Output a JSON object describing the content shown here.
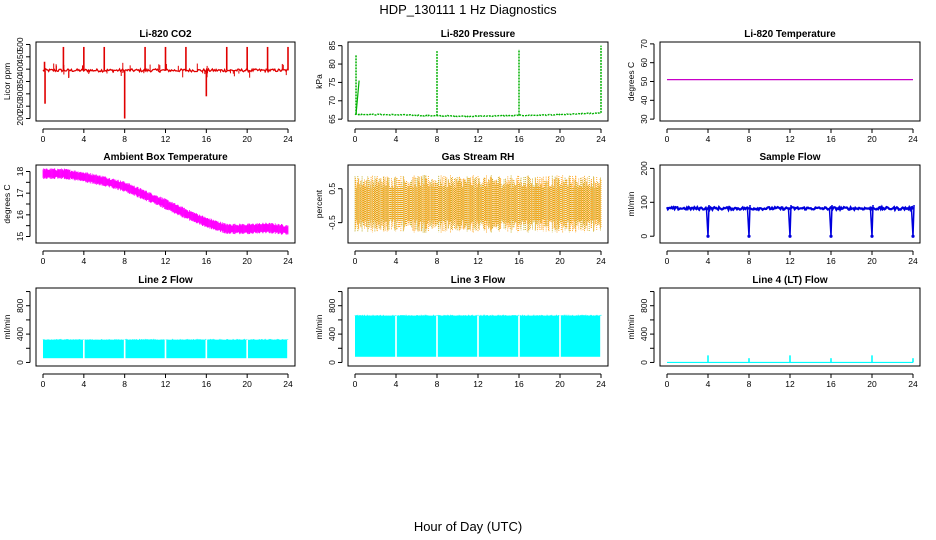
{
  "figure": {
    "title": "HDP_130111  1 Hz Diagnostics",
    "xlabel": "Hour of Day (UTC)"
  },
  "chart_data": [
    {
      "type": "line",
      "title": "Li-820 CO2",
      "ylabel": "Licor ppm",
      "color": "#e00000",
      "xlim": [
        0,
        24
      ],
      "xticks": [
        0,
        4,
        8,
        12,
        16,
        20,
        24
      ],
      "ylim": [
        190,
        510
      ],
      "yticks": [
        200,
        250,
        300,
        350,
        400,
        450,
        500
      ],
      "baseline": 395,
      "noise": 6,
      "spikes": [
        {
          "x": 0.15,
          "y": 430,
          "dir": "up"
        },
        {
          "x": 0.2,
          "y": 260,
          "dir": "down"
        },
        {
          "x": 2,
          "y": 490,
          "dir": "up"
        },
        {
          "x": 4,
          "y": 490,
          "dir": "up"
        },
        {
          "x": 6,
          "y": 490,
          "dir": "up"
        },
        {
          "x": 8,
          "y": 200,
          "dir": "down"
        },
        {
          "x": 10,
          "y": 490,
          "dir": "up"
        },
        {
          "x": 12,
          "y": 490,
          "dir": "up"
        },
        {
          "x": 14,
          "y": 490,
          "dir": "up"
        },
        {
          "x": 16,
          "y": 290,
          "dir": "down"
        },
        {
          "x": 18,
          "y": 490,
          "dir": "up"
        },
        {
          "x": 20,
          "y": 490,
          "dir": "up"
        },
        {
          "x": 22,
          "y": 490,
          "dir": "up"
        },
        {
          "x": 24,
          "y": 490,
          "dir": "up"
        }
      ]
    },
    {
      "type": "line",
      "title": "Li-820 Pressure",
      "ylabel": "kPa",
      "color": "#00b000",
      "xlim": [
        0,
        24
      ],
      "xticks": [
        0,
        4,
        8,
        12,
        16,
        20,
        24
      ],
      "ylim": [
        64.5,
        86
      ],
      "yticks": [
        65,
        70,
        75,
        80,
        85
      ],
      "levels": [
        {
          "x": 0,
          "y": 66.3
        },
        {
          "x": 4,
          "y": 66.2
        },
        {
          "x": 8,
          "y": 65.9
        },
        {
          "x": 12,
          "y": 65.8
        },
        {
          "x": 16,
          "y": 66.0
        },
        {
          "x": 20,
          "y": 66.2
        },
        {
          "x": 24,
          "y": 66.7
        }
      ],
      "spikes": [
        {
          "x": 0.1,
          "y": 82.5
        },
        {
          "x": 8,
          "y": 83.5
        },
        {
          "x": 16,
          "y": 84
        },
        {
          "x": 24,
          "y": 85
        }
      ]
    },
    {
      "type": "line",
      "title": "Li-820 Temperature",
      "ylabel": "degrees C",
      "color": "#c800c8",
      "xlim": [
        0,
        24
      ],
      "xticks": [
        0,
        4,
        8,
        12,
        16,
        20,
        24
      ],
      "ylim": [
        29,
        71
      ],
      "yticks": [
        30,
        40,
        50,
        60,
        70
      ],
      "constant": 51
    },
    {
      "type": "line",
      "title": "Ambient Box Temperature",
      "ylabel": "degrees C",
      "color": "#ff00ff",
      "xlim": [
        0,
        24
      ],
      "xticks": [
        0,
        4,
        8,
        12,
        16,
        20,
        24
      ],
      "ylim": [
        14.7,
        18.3
      ],
      "yticks": [
        15,
        15.5,
        16,
        16.5,
        17,
        17.5,
        18
      ],
      "ytick_labels": [
        "15",
        "16",
        "17",
        "18"
      ],
      "trend": [
        {
          "x": 0,
          "y": 17.9
        },
        {
          "x": 2,
          "y": 17.9
        },
        {
          "x": 4,
          "y": 17.75
        },
        {
          "x": 6,
          "y": 17.55
        },
        {
          "x": 8,
          "y": 17.3
        },
        {
          "x": 10,
          "y": 16.9
        },
        {
          "x": 12,
          "y": 16.5
        },
        {
          "x": 14,
          "y": 16.05
        },
        {
          "x": 16,
          "y": 15.65
        },
        {
          "x": 18,
          "y": 15.35
        },
        {
          "x": 20,
          "y": 15.35
        },
        {
          "x": 22,
          "y": 15.4
        },
        {
          "x": 24,
          "y": 15.3
        }
      ],
      "band": 0.45
    },
    {
      "type": "scatter",
      "title": "Gas Stream RH",
      "ylabel": "percent",
      "color": "#ff9900",
      "color2": "#b8a000",
      "xlim": [
        0,
        24
      ],
      "xticks": [
        0,
        4,
        8,
        12,
        16,
        20,
        24
      ],
      "ylim": [
        -1.1,
        1.2
      ],
      "yticks": [
        -0.5,
        0.5
      ],
      "ytick_labels": [
        "-0.5",
        "0.5"
      ],
      "mean": 0.05,
      "band": 0.65
    },
    {
      "type": "line",
      "title": "Sample Flow",
      "ylabel": "ml/min",
      "color": "#0000dd",
      "xlim": [
        0,
        24
      ],
      "xticks": [
        0,
        4,
        8,
        12,
        16,
        20,
        24
      ],
      "ylim": [
        -20,
        210
      ],
      "yticks": [
        0,
        100,
        200
      ],
      "baseline": 82,
      "noise": 4,
      "dips": [
        {
          "x": 4,
          "y": 0
        },
        {
          "x": 8,
          "y": 0
        },
        {
          "x": 12,
          "y": 0
        },
        {
          "x": 16,
          "y": 0
        },
        {
          "x": 20,
          "y": 0
        },
        {
          "x": 24,
          "y": 0
        }
      ]
    },
    {
      "type": "area",
      "title": "Line 2 Flow",
      "ylabel": "ml/min",
      "color": "#00ffff",
      "xlim": [
        0,
        24
      ],
      "xticks": [
        0,
        4,
        8,
        12,
        16,
        20,
        24
      ],
      "ylim": [
        -50,
        1050
      ],
      "yticks": [
        0,
        200,
        400,
        600,
        800,
        1000
      ],
      "ytick_labels": [
        "0",
        "400",
        "800"
      ],
      "low": 60,
      "high": 320,
      "gaps": [
        4,
        8,
        12,
        16,
        20
      ]
    },
    {
      "type": "area",
      "title": "Line 3 Flow",
      "ylabel": "ml/min",
      "color": "#00ffff",
      "xlim": [
        0,
        24
      ],
      "xticks": [
        0,
        4,
        8,
        12,
        16,
        20,
        24
      ],
      "ylim": [
        -50,
        1050
      ],
      "yticks": [
        0,
        200,
        400,
        600,
        800,
        1000
      ],
      "ytick_labels": [
        "0",
        "400",
        "800"
      ],
      "low": 80,
      "high": 660,
      "gaps": [
        4,
        8,
        12,
        16,
        20
      ]
    },
    {
      "type": "line",
      "title": "Line 4 (LT) Flow",
      "ylabel": "ml/min",
      "color": "#00ffff",
      "xlim": [
        0,
        24
      ],
      "xticks": [
        0,
        4,
        8,
        12,
        16,
        20,
        24
      ],
      "ylim": [
        -50,
        1050
      ],
      "yticks": [
        0,
        200,
        400,
        600,
        800,
        1000
      ],
      "ytick_labels": [
        "0",
        "400",
        "800"
      ],
      "baseline": 0,
      "spikes": [
        {
          "x": 4,
          "y": 100
        },
        {
          "x": 8,
          "y": 60
        },
        {
          "x": 12,
          "y": 100
        },
        {
          "x": 16,
          "y": 60
        },
        {
          "x": 20,
          "y": 100
        },
        {
          "x": 24,
          "y": 60
        }
      ]
    }
  ]
}
